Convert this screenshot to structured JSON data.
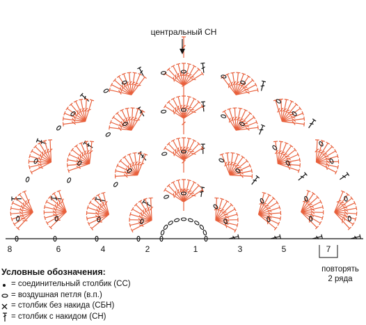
{
  "center_label": "центральный СН",
  "row_numbers": [
    "8",
    "6",
    "4",
    "2",
    "1",
    "3",
    "5",
    "7"
  ],
  "repeat_note": {
    "line1": "повторять",
    "line2": "2 ряда"
  },
  "legend": {
    "title": "Условные обозначения:",
    "items": [
      {
        "symbol": "slip-stitch",
        "text": "= соединительный столбик (СС)"
      },
      {
        "symbol": "chain-loop",
        "text": "= воздушная петля (в.п.)"
      },
      {
        "symbol": "single-crochet",
        "text": "= столбик без накида (СБН)"
      },
      {
        "symbol": "double-crochet",
        "text": "= столбик с накидом (СН)"
      }
    ]
  },
  "colors": {
    "accent_rows": "#e8603c",
    "base_rows": "#111111"
  }
}
